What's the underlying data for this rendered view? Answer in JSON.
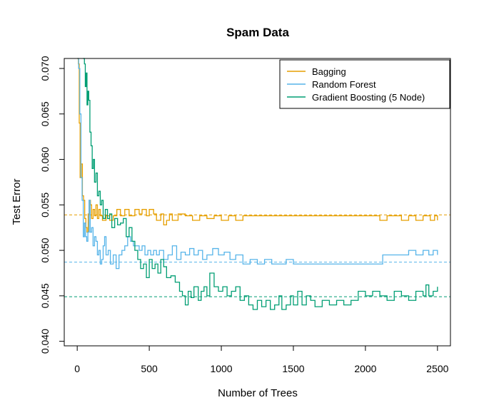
{
  "chart_data": {
    "type": "line",
    "title": "Spam Data",
    "xlabel": "Number of Trees",
    "ylabel": "Test Error",
    "xlim": [
      -90,
      2590
    ],
    "ylim": [
      0.0395,
      0.0711
    ],
    "x_ticks": [
      "0",
      "500",
      "1000",
      "1500",
      "2000",
      "2500"
    ],
    "y_ticks": [
      "0.040",
      "0.045",
      "0.050",
      "0.055",
      "0.060",
      "0.065",
      "0.070"
    ],
    "legend_position": "top-right",
    "grid": false,
    "series": [
      {
        "name": "Bagging",
        "color": "#E69F00",
        "reference_level": 0.0539,
        "points": [
          [
            1,
            0.0711
          ],
          [
            8,
            0.0705
          ],
          [
            14,
            0.064
          ],
          [
            20,
            0.058
          ],
          [
            28,
            0.0595
          ],
          [
            36,
            0.056
          ],
          [
            44,
            0.0555
          ],
          [
            52,
            0.0535
          ],
          [
            60,
            0.0525
          ],
          [
            68,
            0.052
          ],
          [
            76,
            0.054
          ],
          [
            84,
            0.0555
          ],
          [
            92,
            0.055
          ],
          [
            100,
            0.0535
          ],
          [
            110,
            0.0545
          ],
          [
            120,
            0.0538
          ],
          [
            130,
            0.055
          ],
          [
            140,
            0.0535
          ],
          [
            150,
            0.0545
          ],
          [
            160,
            0.0538
          ],
          [
            175,
            0.0533
          ],
          [
            200,
            0.0538
          ],
          [
            225,
            0.0533
          ],
          [
            250,
            0.0538
          ],
          [
            275,
            0.0545
          ],
          [
            300,
            0.0538
          ],
          [
            330,
            0.0545
          ],
          [
            360,
            0.0538
          ],
          [
            400,
            0.0545
          ],
          [
            430,
            0.054
          ],
          [
            450,
            0.0545
          ],
          [
            480,
            0.0538
          ],
          [
            500,
            0.0545
          ],
          [
            530,
            0.054
          ],
          [
            550,
            0.0533
          ],
          [
            580,
            0.054
          ],
          [
            600,
            0.0528
          ],
          [
            620,
            0.0533
          ],
          [
            640,
            0.054
          ],
          [
            660,
            0.0533
          ],
          [
            700,
            0.054
          ],
          [
            750,
            0.0538
          ],
          [
            800,
            0.0533
          ],
          [
            850,
            0.0538
          ],
          [
            900,
            0.0535
          ],
          [
            950,
            0.0538
          ],
          [
            1000,
            0.0533
          ],
          [
            1050,
            0.0538
          ],
          [
            1100,
            0.0533
          ],
          [
            1150,
            0.0538
          ],
          [
            1200,
            0.0538
          ],
          [
            1300,
            0.0538
          ],
          [
            1400,
            0.0538
          ],
          [
            1500,
            0.0538
          ],
          [
            1600,
            0.0538
          ],
          [
            1700,
            0.0538
          ],
          [
            1800,
            0.0538
          ],
          [
            1900,
            0.0538
          ],
          [
            2000,
            0.0538
          ],
          [
            2100,
            0.0533
          ],
          [
            2150,
            0.0538
          ],
          [
            2250,
            0.0533
          ],
          [
            2300,
            0.0538
          ],
          [
            2350,
            0.0533
          ],
          [
            2400,
            0.0538
          ],
          [
            2450,
            0.0533
          ],
          [
            2480,
            0.0538
          ],
          [
            2500,
            0.0533
          ]
        ]
      },
      {
        "name": "Random Forest",
        "color": "#56B4E9",
        "reference_level": 0.0487,
        "points": [
          [
            1,
            0.0711
          ],
          [
            10,
            0.07
          ],
          [
            18,
            0.065
          ],
          [
            26,
            0.058
          ],
          [
            34,
            0.0555
          ],
          [
            42,
            0.0515
          ],
          [
            50,
            0.053
          ],
          [
            58,
            0.0515
          ],
          [
            66,
            0.051
          ],
          [
            74,
            0.052
          ],
          [
            82,
            0.0555
          ],
          [
            90,
            0.052
          ],
          [
            100,
            0.0525
          ],
          [
            110,
            0.0505
          ],
          [
            120,
            0.0515
          ],
          [
            130,
            0.051
          ],
          [
            140,
            0.0495
          ],
          [
            150,
            0.05
          ],
          [
            160,
            0.0485
          ],
          [
            170,
            0.049
          ],
          [
            180,
            0.0505
          ],
          [
            190,
            0.0515
          ],
          [
            200,
            0.0495
          ],
          [
            215,
            0.05
          ],
          [
            230,
            0.0485
          ],
          [
            250,
            0.0495
          ],
          [
            270,
            0.048
          ],
          [
            290,
            0.0495
          ],
          [
            310,
            0.05
          ],
          [
            330,
            0.0505
          ],
          [
            350,
            0.0515
          ],
          [
            370,
            0.051
          ],
          [
            390,
            0.0505
          ],
          [
            410,
            0.0505
          ],
          [
            430,
            0.05
          ],
          [
            450,
            0.0505
          ],
          [
            470,
            0.0495
          ],
          [
            490,
            0.05
          ],
          [
            510,
            0.0495
          ],
          [
            530,
            0.05
          ],
          [
            550,
            0.0495
          ],
          [
            570,
            0.05
          ],
          [
            600,
            0.049
          ],
          [
            630,
            0.0495
          ],
          [
            660,
            0.0505
          ],
          [
            690,
            0.049
          ],
          [
            720,
            0.0498
          ],
          [
            750,
            0.0495
          ],
          [
            780,
            0.0502
          ],
          [
            810,
            0.0495
          ],
          [
            840,
            0.05
          ],
          [
            870,
            0.049
          ],
          [
            900,
            0.0495
          ],
          [
            940,
            0.0502
          ],
          [
            980,
            0.0495
          ],
          [
            1020,
            0.0498
          ],
          [
            1060,
            0.049
          ],
          [
            1100,
            0.0495
          ],
          [
            1150,
            0.0485
          ],
          [
            1200,
            0.049
          ],
          [
            1250,
            0.0485
          ],
          [
            1300,
            0.049
          ],
          [
            1350,
            0.0485
          ],
          [
            1400,
            0.0485
          ],
          [
            1450,
            0.049
          ],
          [
            1500,
            0.0485
          ],
          [
            1600,
            0.0485
          ],
          [
            1700,
            0.0485
          ],
          [
            1800,
            0.0485
          ],
          [
            1900,
            0.0485
          ],
          [
            2000,
            0.0485
          ],
          [
            2060,
            0.0485
          ],
          [
            2120,
            0.0495
          ],
          [
            2200,
            0.0495
          ],
          [
            2300,
            0.05
          ],
          [
            2350,
            0.0495
          ],
          [
            2400,
            0.05
          ],
          [
            2440,
            0.0495
          ],
          [
            2470,
            0.05
          ],
          [
            2500,
            0.0495
          ]
        ]
      },
      {
        "name": "Gradient Boosting (5 Node)",
        "color": "#009E73",
        "reference_level": 0.0449,
        "points": [
          [
            40,
            0.0711
          ],
          [
            50,
            0.0705
          ],
          [
            56,
            0.068
          ],
          [
            62,
            0.0695
          ],
          [
            68,
            0.066
          ],
          [
            74,
            0.0675
          ],
          [
            80,
            0.0665
          ],
          [
            88,
            0.063
          ],
          [
            96,
            0.0615
          ],
          [
            104,
            0.059
          ],
          [
            112,
            0.06
          ],
          [
            120,
            0.0575
          ],
          [
            130,
            0.0585
          ],
          [
            140,
            0.056
          ],
          [
            150,
            0.0565
          ],
          [
            160,
            0.055
          ],
          [
            170,
            0.0555
          ],
          [
            180,
            0.0535
          ],
          [
            195,
            0.0545
          ],
          [
            210,
            0.0535
          ],
          [
            225,
            0.054
          ],
          [
            240,
            0.0525
          ],
          [
            260,
            0.0535
          ],
          [
            280,
            0.0528
          ],
          [
            300,
            0.053
          ],
          [
            320,
            0.0535
          ],
          [
            340,
            0.0515
          ],
          [
            360,
            0.0525
          ],
          [
            380,
            0.051
          ],
          [
            400,
            0.05
          ],
          [
            420,
            0.049
          ],
          [
            440,
            0.048
          ],
          [
            460,
            0.0485
          ],
          [
            480,
            0.047
          ],
          [
            500,
            0.049
          ],
          [
            520,
            0.048
          ],
          [
            540,
            0.0485
          ],
          [
            560,
            0.0475
          ],
          [
            580,
            0.049
          ],
          [
            600,
            0.0482
          ],
          [
            620,
            0.047
          ],
          [
            650,
            0.0472
          ],
          [
            680,
            0.0465
          ],
          [
            710,
            0.0455
          ],
          [
            730,
            0.045
          ],
          [
            750,
            0.044
          ],
          [
            770,
            0.0455
          ],
          [
            790,
            0.0448
          ],
          [
            810,
            0.046
          ],
          [
            840,
            0.0445
          ],
          [
            860,
            0.0455
          ],
          [
            880,
            0.046
          ],
          [
            900,
            0.045
          ],
          [
            920,
            0.0475
          ],
          [
            950,
            0.046
          ],
          [
            980,
            0.0455
          ],
          [
            1010,
            0.046
          ],
          [
            1040,
            0.045
          ],
          [
            1070,
            0.0455
          ],
          [
            1100,
            0.046
          ],
          [
            1130,
            0.0445
          ],
          [
            1160,
            0.045
          ],
          [
            1190,
            0.044
          ],
          [
            1220,
            0.0435
          ],
          [
            1250,
            0.0445
          ],
          [
            1280,
            0.0438
          ],
          [
            1310,
            0.0445
          ],
          [
            1340,
            0.0435
          ],
          [
            1370,
            0.044
          ],
          [
            1400,
            0.045
          ],
          [
            1420,
            0.0435
          ],
          [
            1450,
            0.044
          ],
          [
            1480,
            0.045
          ],
          [
            1500,
            0.044
          ],
          [
            1530,
            0.0455
          ],
          [
            1560,
            0.044
          ],
          [
            1590,
            0.045
          ],
          [
            1620,
            0.0445
          ],
          [
            1650,
            0.0438
          ],
          [
            1700,
            0.0445
          ],
          [
            1750,
            0.044
          ],
          [
            1800,
            0.0445
          ],
          [
            1850,
            0.044
          ],
          [
            1900,
            0.0445
          ],
          [
            1950,
            0.0455
          ],
          [
            2000,
            0.045
          ],
          [
            2050,
            0.0455
          ],
          [
            2100,
            0.045
          ],
          [
            2150,
            0.0445
          ],
          [
            2200,
            0.0455
          ],
          [
            2250,
            0.045
          ],
          [
            2300,
            0.0445
          ],
          [
            2350,
            0.0455
          ],
          [
            2400,
            0.045
          ],
          [
            2420,
            0.0462
          ],
          [
            2440,
            0.045
          ],
          [
            2470,
            0.0455
          ],
          [
            2500,
            0.046
          ]
        ]
      }
    ]
  }
}
